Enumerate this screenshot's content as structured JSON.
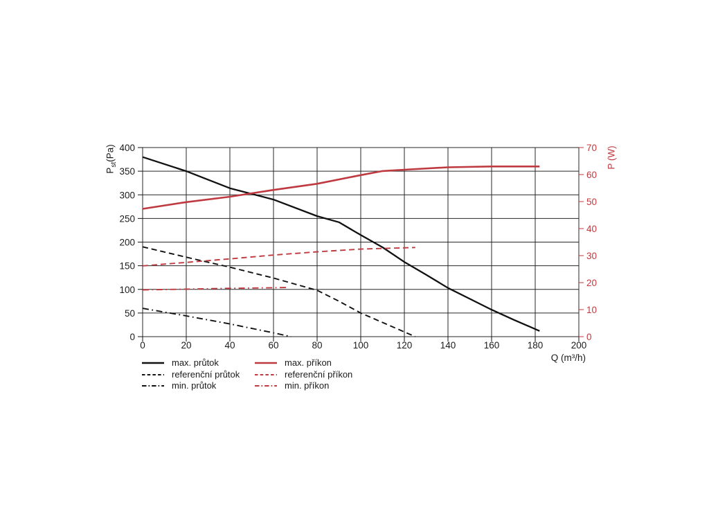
{
  "figure": {
    "background": "#ffffff"
  },
  "colors": {
    "black": "#111111",
    "red": "#bf3a40",
    "grid": "#262626",
    "text": "#1a1a1a"
  },
  "chart_data": {
    "type": "line",
    "grid": true,
    "legend_position": "bottom-left",
    "x_axis": {
      "label": "Q (m³/h)",
      "min": 0,
      "max": 200,
      "ticks": [
        0,
        20,
        40,
        60,
        80,
        100,
        120,
        140,
        160,
        180,
        200
      ]
    },
    "y_axis_left": {
      "label_main": "P",
      "label_sub": "st",
      "label_unit": "(Pa)",
      "min": 0,
      "max": 400,
      "ticks": [
        400,
        350,
        300,
        250,
        200,
        150,
        100,
        50,
        0
      ]
    },
    "y_axis_right": {
      "label": "P (W)",
      "min": 0,
      "max": 70,
      "ticks": [
        70,
        60,
        50,
        40,
        30,
        20,
        10,
        0
      ]
    },
    "series": [
      {
        "name": "max. průtok",
        "axis": "left",
        "color": "#111111",
        "style": "solid",
        "x": [
          0,
          20,
          40,
          60,
          80,
          90,
          100,
          110,
          120,
          130,
          140,
          150,
          160,
          170,
          182
        ],
        "y": [
          380,
          350,
          314,
          290,
          255,
          242,
          215,
          189,
          158,
          131,
          103,
          80,
          57,
          36,
          12
        ]
      },
      {
        "name": "referenční průtok",
        "axis": "left",
        "color": "#111111",
        "style": "dashed",
        "x": [
          0,
          20,
          40,
          60,
          80,
          90,
          100,
          110,
          120,
          125
        ],
        "y": [
          190,
          168,
          147,
          124,
          98,
          75,
          50,
          30,
          10,
          0
        ]
      },
      {
        "name": "min. průtok",
        "axis": "left",
        "color": "#111111",
        "style": "dashdot",
        "x": [
          0,
          20,
          40,
          60,
          68
        ],
        "y": [
          60,
          44,
          27,
          8,
          0
        ]
      },
      {
        "name": "max. příkon",
        "axis": "right",
        "color": "#bf3a40",
        "style": "solid",
        "x": [
          0,
          20,
          40,
          60,
          80,
          100,
          110,
          120,
          140,
          160,
          182
        ],
        "y": [
          47.3,
          49.8,
          51.8,
          54.3,
          56.6,
          59.8,
          61.3,
          61.8,
          62.7,
          63,
          63
        ]
      },
      {
        "name": "referenční příkon",
        "axis": "right",
        "color": "#bf3a40",
        "style": "dashed",
        "x": [
          0,
          20,
          40,
          60,
          80,
          100,
          125
        ],
        "y": [
          26.2,
          27.5,
          28.8,
          30.2,
          31.4,
          32.4,
          33
        ]
      },
      {
        "name": "min. příkon",
        "axis": "right",
        "color": "#bf3a40",
        "style": "dashdot",
        "x": [
          0,
          20,
          40,
          60,
          67
        ],
        "y": [
          17.3,
          17.6,
          17.9,
          18.1,
          18.2
        ]
      }
    ]
  }
}
